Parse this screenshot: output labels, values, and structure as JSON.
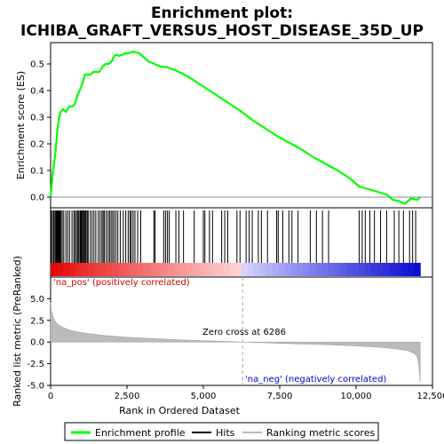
{
  "chart_data": {
    "type": "line",
    "title_lines": [
      "Enrichment plot:",
      "ICHIBA_GRAFT_VERSUS_HOST_DISEASE_35D_UP"
    ],
    "top_panel": {
      "ylabel": "Enrichment score (ES)",
      "ylim": [
        -0.04,
        0.58
      ],
      "yticks": [
        0.0,
        0.1,
        0.2,
        0.3,
        0.4,
        0.5
      ],
      "ytick_labels": [
        "0.0",
        "0.1",
        "0.2",
        "0.3",
        "0.4",
        "0.5"
      ],
      "series": [
        {
          "name": "Enrichment profile",
          "color": "#00ff00",
          "x": [
            0,
            60,
            150,
            220,
            280,
            330,
            400,
            500,
            600,
            700,
            800,
            870,
            950,
            1050,
            1120,
            1200,
            1300,
            1400,
            1500,
            1600,
            1700,
            1800,
            1900,
            2000,
            2080,
            2150,
            2250,
            2350,
            2450,
            2550,
            2650,
            2750,
            2900,
            3050,
            3200,
            3400,
            3600,
            3800,
            4000,
            4300,
            4600,
            5000,
            5400,
            5800,
            6200,
            6600,
            7000,
            7400,
            7800,
            8200,
            8600,
            9000,
            9400,
            9800,
            10100,
            10400,
            10700,
            11000,
            11200,
            11400,
            11600,
            11800,
            12000,
            12100
          ],
          "y": [
            0.0,
            0.08,
            0.16,
            0.25,
            0.3,
            0.32,
            0.33,
            0.32,
            0.34,
            0.34,
            0.35,
            0.38,
            0.4,
            0.43,
            0.46,
            0.46,
            0.46,
            0.47,
            0.47,
            0.47,
            0.49,
            0.5,
            0.5,
            0.51,
            0.53,
            0.535,
            0.53,
            0.535,
            0.54,
            0.54,
            0.545,
            0.545,
            0.54,
            0.525,
            0.51,
            0.5,
            0.49,
            0.488,
            0.48,
            0.465,
            0.445,
            0.415,
            0.385,
            0.355,
            0.325,
            0.29,
            0.26,
            0.23,
            0.205,
            0.18,
            0.15,
            0.125,
            0.1,
            0.07,
            0.04,
            0.03,
            0.02,
            0.01,
            -0.01,
            -0.015,
            -0.025,
            -0.005,
            -0.01,
            0.0
          ]
        }
      ]
    },
    "hits_panel": {
      "series_name": "Hits",
      "positions": [
        20,
        60,
        100,
        140,
        170,
        190,
        210,
        230,
        250,
        270,
        290,
        310,
        340,
        380,
        430,
        500,
        560,
        620,
        700,
        760,
        800,
        850,
        880,
        920,
        960,
        990,
        1010,
        1040,
        1070,
        1100,
        1130,
        1160,
        1200,
        1230,
        1300,
        1360,
        1420,
        1480,
        1560,
        1620,
        1680,
        1720,
        1760,
        1820,
        1880,
        1930,
        1980,
        2030,
        2080,
        2140,
        2200,
        2280,
        2380,
        2460,
        2540,
        2600,
        2640,
        2700,
        2760,
        2850,
        2950,
        3380,
        3420,
        3700,
        3760,
        3820,
        3880,
        4100,
        4200,
        4350,
        4700,
        5000,
        5050,
        5200,
        5300,
        5600,
        5700,
        5800,
        6100,
        6200,
        6400,
        6500,
        6600,
        6800,
        6900,
        7100,
        7400,
        7450,
        7600,
        7800,
        7900,
        8100,
        8500,
        8700,
        8900,
        9100,
        10100,
        10200,
        10300,
        10450,
        10600,
        10800,
        11000,
        11250,
        11400,
        11550,
        11750,
        11850,
        11950
      ]
    },
    "ranked_panel": {
      "series_name": "Ranking metric scores",
      "ylabel": "Ranked list metric (PreRanked)",
      "ylim": [
        -5.0,
        7.5
      ],
      "yticks": [
        -5.0,
        -2.5,
        0.0,
        2.5,
        5.0
      ],
      "ytick_labels": [
        "-5.0",
        "-2.5",
        "0.0",
        "2.5",
        "5.0"
      ],
      "profile_x": [
        0,
        30,
        80,
        150,
        250,
        400,
        600,
        900,
        1300,
        1800,
        2500,
        3500,
        4500,
        5500,
        6286,
        7000,
        8000,
        9000,
        10000,
        10800,
        11300,
        11700,
        11900,
        12000,
        12050,
        12100
      ],
      "profile_y": [
        4.6,
        3.6,
        2.9,
        2.4,
        2.0,
        1.7,
        1.4,
        1.15,
        0.95,
        0.75,
        0.55,
        0.38,
        0.22,
        0.1,
        0.0,
        -0.08,
        -0.2,
        -0.3,
        -0.45,
        -0.6,
        -0.78,
        -1.0,
        -1.3,
        -1.7,
        -2.6,
        -4.6
      ],
      "pos_label": "'na_pos' (positively correlated)",
      "neg_label": "'na_neg' (negatively correlated)",
      "zero_cross_label": "Zero cross at 6286",
      "zero_cross": 6286
    },
    "x_axis": {
      "xlabel": "Rank in Ordered Dataset",
      "xlim": [
        0,
        12500
      ],
      "xticks": [
        0,
        2500,
        5000,
        7500,
        10000,
        12500
      ],
      "xtick_labels": [
        "0",
        "2,500",
        "5,000",
        "7,500",
        "10,000",
        "12,500"
      ],
      "n_genes": 12100
    },
    "legend": {
      "placement": "bottom",
      "entries": [
        {
          "label": "Enrichment profile",
          "color": "#00ff00",
          "style": "line"
        },
        {
          "label": "Hits",
          "color": "#000000",
          "style": "line"
        },
        {
          "label": "Ranking metric scores",
          "color": "#bbbbbb",
          "style": "line"
        }
      ]
    },
    "colors": {
      "profile": "#00ff00",
      "hits": "#000000",
      "metric_fill": "#bbbbbb",
      "pos_text": "#cc0000",
      "neg_text": "#0000cc",
      "zero_line": "#aaaaaa"
    }
  }
}
